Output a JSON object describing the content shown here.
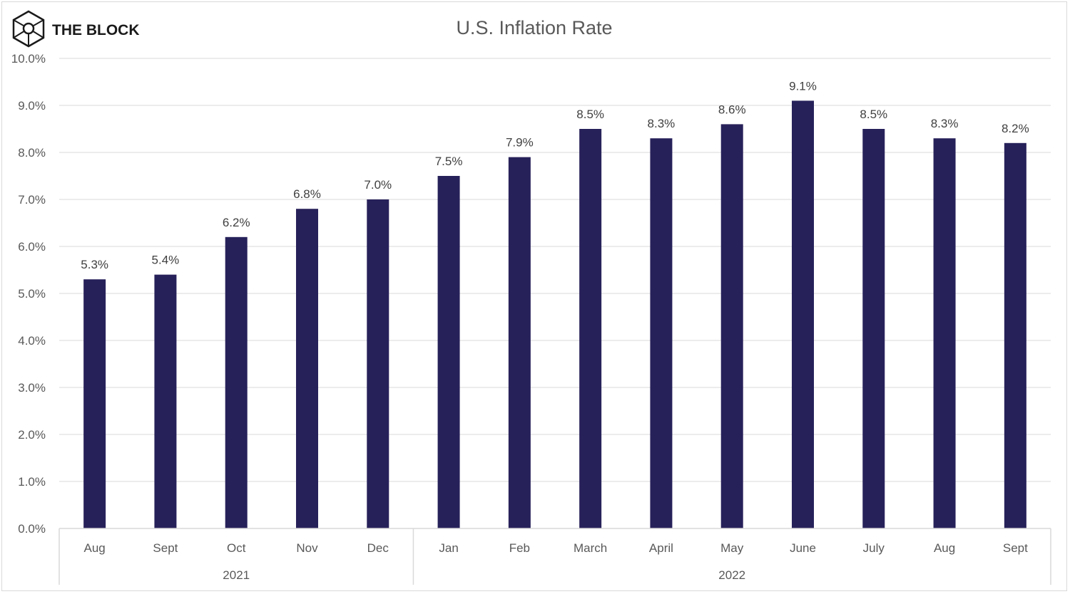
{
  "brand": {
    "name": "THE BLOCK",
    "logo_icon": "cube-logo-icon"
  },
  "colors": {
    "bar": "#27215a",
    "grid": "#d9d9d9",
    "axis_text": "#595959",
    "label_text": "#404040"
  },
  "chart_data": {
    "type": "bar",
    "title": "U.S. Inflation Rate",
    "xlabel": "",
    "ylabel": "",
    "ylim": [
      0,
      10
    ],
    "y_ticks": [
      "0.0%",
      "1.0%",
      "2.0%",
      "3.0%",
      "4.0%",
      "5.0%",
      "6.0%",
      "7.0%",
      "8.0%",
      "9.0%",
      "10.0%"
    ],
    "categories": [
      "Aug",
      "Sept",
      "Oct",
      "Nov",
      "Dec",
      "Jan",
      "Feb",
      "March",
      "April",
      "May",
      "June",
      "July",
      "Aug",
      "Sept"
    ],
    "values": [
      5.3,
      5.4,
      6.2,
      6.8,
      7.0,
      7.5,
      7.9,
      8.5,
      8.3,
      8.6,
      9.1,
      8.5,
      8.3,
      8.2
    ],
    "data_labels": [
      "5.3%",
      "5.4%",
      "6.2%",
      "6.8%",
      "7.0%",
      "7.5%",
      "7.9%",
      "8.5%",
      "8.3%",
      "8.6%",
      "9.1%",
      "8.5%",
      "8.3%",
      "8.2%"
    ],
    "groups": [
      {
        "label": "2021",
        "count": 5
      },
      {
        "label": "2022",
        "count": 9
      }
    ],
    "grid": true,
    "legend": "none"
  }
}
